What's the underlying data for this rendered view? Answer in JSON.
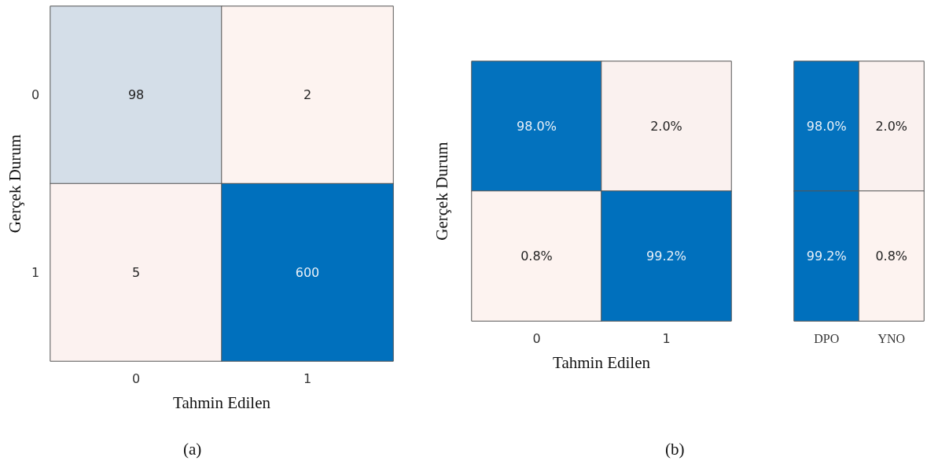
{
  "chart_data": [
    {
      "type": "heatmap",
      "categories": [
        "0",
        "1"
      ],
      "y_categories": [
        "0",
        "1"
      ],
      "xlabel": "Tahmin Edilen",
      "ylabel": "Gerçek Durum",
      "cells": [
        [
          98,
          2
        ],
        [
          5,
          600
        ]
      ],
      "data_labels": true,
      "annotations": [
        "(a)"
      ]
    },
    {
      "type": "heatmap",
      "categories": [
        "0",
        "1"
      ],
      "y_categories": [
        null,
        null
      ],
      "xlabel": "Tahmin Edilen",
      "ylabel": "Gerçek Durum",
      "cells": [
        [
          98.0,
          2.0
        ],
        [
          0.8,
          99.2
        ]
      ],
      "cell_labels": [
        [
          "98.0%",
          "2.0%"
        ],
        [
          "0.8%",
          "99.2%"
        ]
      ],
      "annotations": [
        "(b)"
      ]
    },
    {
      "type": "heatmap",
      "categories": [
        "DPO",
        "YNO"
      ],
      "y_categories": [
        null,
        null
      ],
      "cells": [
        [
          98.0,
          2.0
        ],
        [
          99.2,
          0.8
        ]
      ],
      "cell_labels": [
        [
          "98.0%",
          "2.0%"
        ],
        [
          "99.2%",
          "0.8%"
        ]
      ]
    }
  ]
}
